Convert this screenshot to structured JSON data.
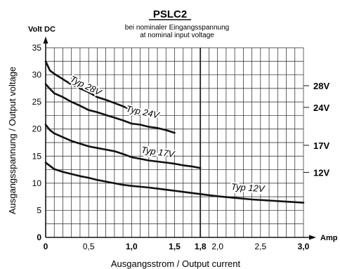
{
  "chart_data": {
    "type": "line",
    "title": "PSLC2",
    "subtitle_line1": "bei nominaler Eingangsspannung",
    "subtitle_line2": "at nominal input voltage",
    "ylabel": "Ausgangsspannung / Output voltage",
    "xlabel": "Ausgangsstrom / Output current",
    "y_unit": "Volt DC",
    "x_unit": "Amp",
    "xlim": [
      0,
      3.0
    ],
    "ylim": [
      0,
      35
    ],
    "x_ticks": [
      {
        "value": 0,
        "label": "0",
        "bold": true
      },
      {
        "value": 0.5,
        "label": "0,5",
        "bold": false
      },
      {
        "value": 1.0,
        "label": "1,0",
        "bold": true
      },
      {
        "value": 1.5,
        "label": "1,5",
        "bold": true
      },
      {
        "value": 1.8,
        "label": "1,8",
        "bold": true
      },
      {
        "value": 2.0,
        "label": "2,0",
        "bold": false
      },
      {
        "value": 2.5,
        "label": "2,5",
        "bold": false
      },
      {
        "value": 3.0,
        "label": "3,0",
        "bold": true
      }
    ],
    "y_ticks": [
      {
        "value": 0,
        "label": "0",
        "bold": true
      },
      {
        "value": 5,
        "label": "5",
        "bold": false
      },
      {
        "value": 10,
        "label": "10",
        "bold": false
      },
      {
        "value": 15,
        "label": "15",
        "bold": false
      },
      {
        "value": 20,
        "label": "20",
        "bold": false
      },
      {
        "value": 25,
        "label": "25",
        "bold": false
      },
      {
        "value": 30,
        "label": "30",
        "bold": false
      },
      {
        "value": 35,
        "label": "35",
        "bold": false
      }
    ],
    "grid": true,
    "grid_x_step": 0.1,
    "grid_y_step": 2.5,
    "series": [
      {
        "name": "Typ 28V",
        "x": [
          0,
          0.05,
          0.1,
          0.2,
          0.3,
          0.4,
          0.5,
          0.6,
          0.7,
          0.8,
          0.9,
          1.0
        ],
        "y": [
          32.5,
          30.8,
          30.2,
          29.2,
          28.2,
          27.5,
          26.8,
          25.9,
          25.4,
          24.8,
          24.2,
          23.5
        ]
      },
      {
        "name": "Typ 24V",
        "x": [
          0,
          0.05,
          0.1,
          0.2,
          0.3,
          0.4,
          0.5,
          0.6,
          0.7,
          0.8,
          0.9,
          1.0,
          1.1,
          1.2,
          1.3,
          1.4,
          1.5
        ],
        "y": [
          28.3,
          27.4,
          26.6,
          25.9,
          25.0,
          24.3,
          23.5,
          23.1,
          22.6,
          22.1,
          21.6,
          21.0,
          20.8,
          20.4,
          20.2,
          19.8,
          19.3
        ]
      },
      {
        "name": "Typ 17V",
        "x": [
          0,
          0.05,
          0.1,
          0.2,
          0.3,
          0.4,
          0.5,
          0.6,
          0.7,
          0.8,
          0.9,
          1.0,
          1.1,
          1.2,
          1.3,
          1.4,
          1.5,
          1.6,
          1.7,
          1.8
        ],
        "y": [
          20.8,
          19.8,
          19.2,
          18.5,
          17.8,
          17.3,
          16.8,
          16.5,
          16.2,
          15.9,
          15.4,
          14.8,
          14.5,
          14.2,
          14.0,
          13.8,
          13.6,
          13.3,
          13.1,
          12.8
        ]
      },
      {
        "name": "Typ 12V",
        "x": [
          0,
          0.05,
          0.1,
          0.2,
          0.3,
          0.4,
          0.5,
          0.6,
          0.7,
          0.8,
          0.9,
          1.0,
          1.2,
          1.4,
          1.6,
          1.8,
          2.0,
          2.2,
          2.4,
          2.6,
          2.8,
          3.0
        ],
        "y": [
          13.8,
          13.2,
          12.6,
          12.1,
          11.7,
          11.3,
          11.0,
          10.6,
          10.3,
          10.0,
          9.7,
          9.5,
          9.2,
          8.8,
          8.4,
          8.0,
          7.6,
          7.3,
          7.0,
          6.8,
          6.6,
          6.4
        ]
      }
    ],
    "series_labels": [
      {
        "text": "Typ 28V",
        "x": 0.45,
        "y": 27.5,
        "rotate": 26
      },
      {
        "text": "Typ 24V",
        "x": 1.12,
        "y": 22.6,
        "rotate": 12
      },
      {
        "text": "Typ 17V",
        "x": 1.3,
        "y": 15.2,
        "rotate": 8
      },
      {
        "text": "Typ 12V",
        "x": 2.35,
        "y": 8.6,
        "rotate": 4
      }
    ],
    "nominal_labels": [
      {
        "text": "28V",
        "y": 28
      },
      {
        "text": "24V",
        "y": 24
      },
      {
        "text": "17V",
        "y": 17
      },
      {
        "text": "12V",
        "y": 12
      }
    ]
  }
}
